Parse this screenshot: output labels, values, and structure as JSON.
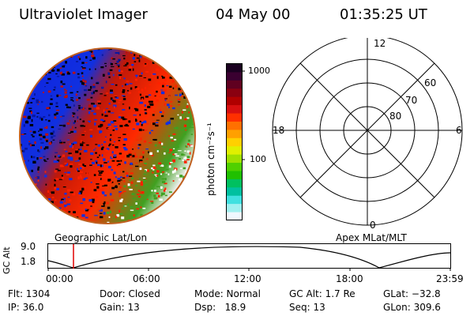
{
  "header": {
    "instrument": "Ultraviolet Imager",
    "date": "04 May 00",
    "time": "01:35:25 UT"
  },
  "colorbar": {
    "unit_label": "photon cm⁻²s⁻¹",
    "ticks": [
      "1000",
      "100"
    ],
    "colors": [
      "#1a0020",
      "#3a0030",
      "#600020",
      "#8a0010",
      "#b00000",
      "#d81010",
      "#ff3000",
      "#ff7000",
      "#ffa000",
      "#ffd000",
      "#e0f000",
      "#a0e000",
      "#50d000",
      "#20c000",
      "#00c060",
      "#00c0a0",
      "#40e0e0",
      "#a0f0f0",
      "#f0f8ff"
    ]
  },
  "polar_plot": {
    "clock_labels": [
      "12",
      "18",
      "6",
      "0"
    ],
    "lat_labels": [
      "60",
      "70",
      "80"
    ]
  },
  "timeline": {
    "left_label": "Geographic Lat/Lon",
    "right_label": "Apex MLat/MLT",
    "y_axis_label": "GC Alt",
    "y_ticks": [
      "9.0",
      "1.8"
    ],
    "x_ticks": [
      "00:00",
      "06:00",
      "12:00",
      "18:00",
      "23:59"
    ],
    "marker_color": "#e00000"
  },
  "status": {
    "flt": "Flt: 1304",
    "ip": "IP: 36.0",
    "door": "Door: Closed",
    "gain": "Gain: 13",
    "mode": "Mode: Normal",
    "dsp": "Dsp:   18.9",
    "gc_alt": "GC Alt: 1.7 Re",
    "seq": "Seq: 13",
    "glat": "GLat: −32.8",
    "glon": "GLon: 309.6"
  }
}
